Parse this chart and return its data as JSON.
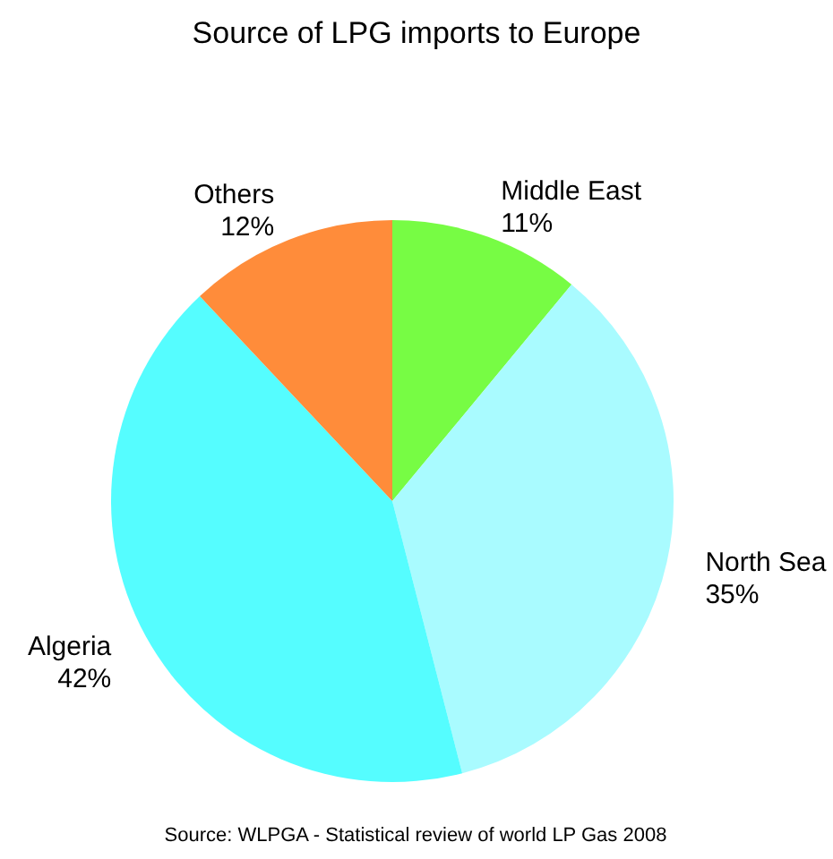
{
  "chart_data": {
    "type": "pie",
    "title": "Source of LPG imports to Europe",
    "categories": [
      "Middle East",
      "North Sea",
      "Algeria",
      "Others"
    ],
    "values": [
      11,
      35,
      42,
      12
    ],
    "value_labels": [
      "11%",
      "35%",
      "42%",
      "12%"
    ],
    "colors": [
      "#77fc44",
      "#a9fbff",
      "#55fdff",
      "#ff8c3a"
    ],
    "annotations": [
      "Source: WLPGA - Statistical review of world LP Gas 2008"
    ]
  }
}
